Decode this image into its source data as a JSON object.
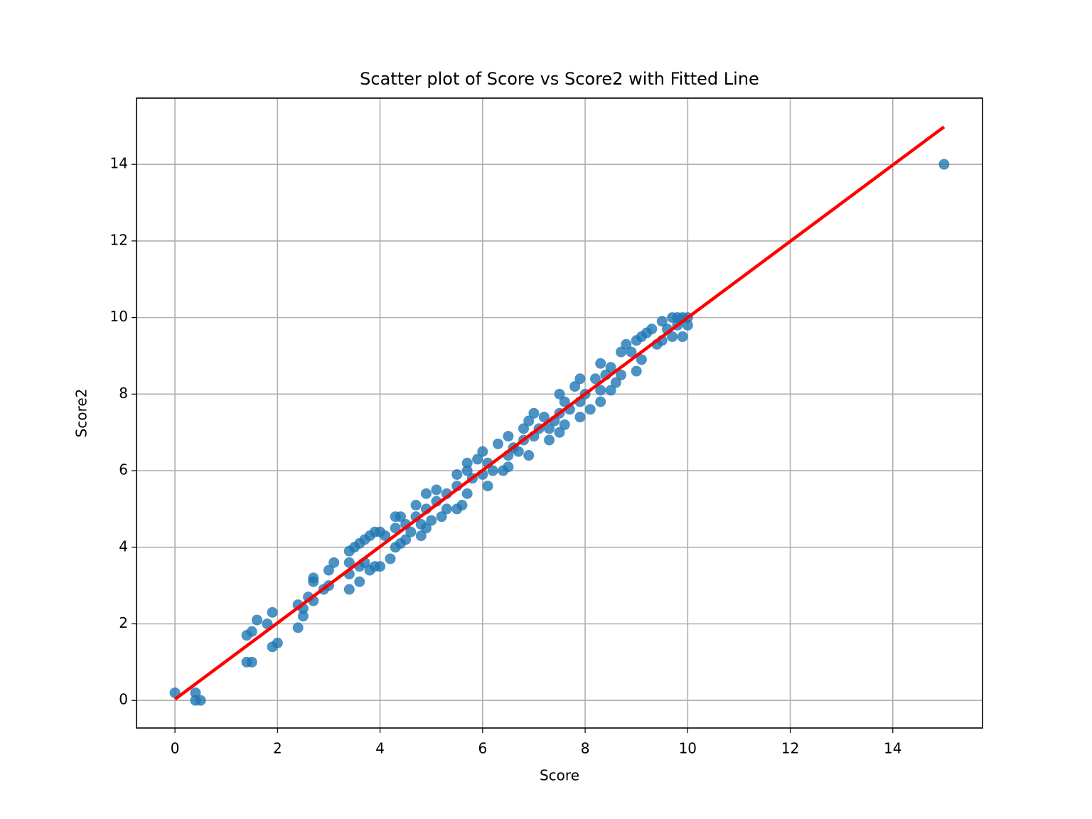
{
  "chart_data": {
    "type": "scatter",
    "title": "Scatter plot of Score vs Score2 with Fitted Line",
    "xlabel": "Score",
    "ylabel": "Score2",
    "xlim": [
      -0.75,
      15.75
    ],
    "ylim": [
      -0.72,
      15.73
    ],
    "xticks": [
      0,
      2,
      4,
      6,
      8,
      10,
      12,
      14
    ],
    "yticks": [
      0,
      2,
      4,
      6,
      8,
      10,
      12,
      14
    ],
    "grid": true,
    "series": [
      {
        "color": "#1f77b4",
        "x": [
          0,
          0.4,
          0.4,
          0.5,
          1.4,
          1.5,
          1.4,
          1.5,
          1.6,
          1.8,
          1.9,
          1.9,
          2.0,
          2.4,
          2.4,
          2.5,
          2.5,
          2.6,
          2.7,
          2.7,
          2.7,
          2.9,
          3.0,
          3.0,
          3.1,
          3.4,
          3.4,
          3.4,
          3.4,
          3.5,
          3.6,
          3.6,
          3.6,
          3.7,
          3.7,
          3.8,
          3.8,
          3.9,
          3.9,
          4.0,
          4.0,
          4.1,
          4.2,
          4.3,
          4.3,
          4.3,
          4.4,
          4.4,
          4.5,
          4.5,
          4.6,
          4.7,
          4.7,
          4.8,
          4.8,
          4.9,
          4.9,
          4.9,
          5.0,
          5.1,
          5.1,
          5.2,
          5.3,
          5.3,
          5.5,
          5.5,
          5.5,
          5.6,
          5.7,
          5.7,
          5.7,
          5.8,
          5.9,
          6.0,
          6.0,
          6.1,
          6.1,
          6.2,
          6.3,
          6.4,
          6.5,
          6.5,
          6.5,
          6.6,
          6.7,
          6.8,
          6.8,
          6.9,
          6.9,
          7.0,
          7.0,
          7.1,
          7.2,
          7.3,
          7.3,
          7.4,
          7.5,
          7.5,
          7.5,
          7.6,
          7.6,
          7.7,
          7.8,
          7.9,
          7.9,
          7.9,
          8.0,
          8.1,
          8.2,
          8.3,
          8.3,
          8.3,
          8.4,
          8.5,
          8.5,
          8.6,
          8.7,
          8.7,
          8.8,
          8.9,
          9.0,
          9.0,
          9.1,
          9.1,
          9.2,
          9.3,
          9.4,
          9.5,
          9.5,
          9.6,
          9.7,
          9.7,
          9.8,
          9.8,
          9.9,
          9.9,
          10.0,
          10.0,
          15
        ],
        "y": [
          0.2,
          0.2,
          0,
          0,
          1.7,
          1.8,
          1.0,
          1.0,
          2.1,
          2.0,
          2.3,
          1.4,
          1.5,
          1.9,
          2.5,
          2.2,
          2.4,
          2.7,
          2.6,
          3.1,
          3.2,
          2.9,
          3.0,
          3.4,
          3.6,
          2.9,
          3.3,
          3.6,
          3.9,
          4.0,
          3.1,
          3.5,
          4.1,
          3.6,
          4.2,
          3.4,
          4.3,
          3.5,
          4.4,
          3.5,
          4.4,
          4.3,
          3.7,
          4.0,
          4.5,
          4.8,
          4.1,
          4.8,
          4.2,
          4.6,
          4.4,
          4.8,
          5.1,
          4.3,
          4.6,
          4.5,
          5.0,
          5.4,
          4.7,
          5.2,
          5.5,
          4.8,
          5.0,
          5.4,
          5.0,
          5.6,
          5.9,
          5.1,
          5.4,
          6.0,
          6.2,
          5.8,
          6.3,
          5.9,
          6.5,
          5.6,
          6.2,
          6.0,
          6.7,
          6.0,
          6.1,
          6.4,
          6.9,
          6.6,
          6.5,
          6.8,
          7.1,
          6.4,
          7.3,
          6.9,
          7.5,
          7.1,
          7.4,
          6.8,
          7.1,
          7.3,
          7.0,
          7.5,
          8.0,
          7.2,
          7.8,
          7.6,
          8.2,
          7.4,
          7.8,
          8.4,
          8.0,
          7.6,
          8.4,
          7.8,
          8.1,
          8.8,
          8.5,
          8.1,
          8.7,
          8.3,
          8.5,
          9.1,
          9.3,
          9.1,
          8.6,
          9.4,
          8.9,
          9.5,
          9.6,
          9.7,
          9.3,
          9.4,
          9.9,
          9.7,
          9.5,
          10.0,
          9.8,
          10.0,
          9.5,
          10.0,
          9.8,
          10.0,
          14
        ]
      }
    ],
    "fit": {
      "color": "#ff0000",
      "x": [
        0,
        15
      ],
      "y": [
        0.03,
        14.98
      ]
    }
  }
}
